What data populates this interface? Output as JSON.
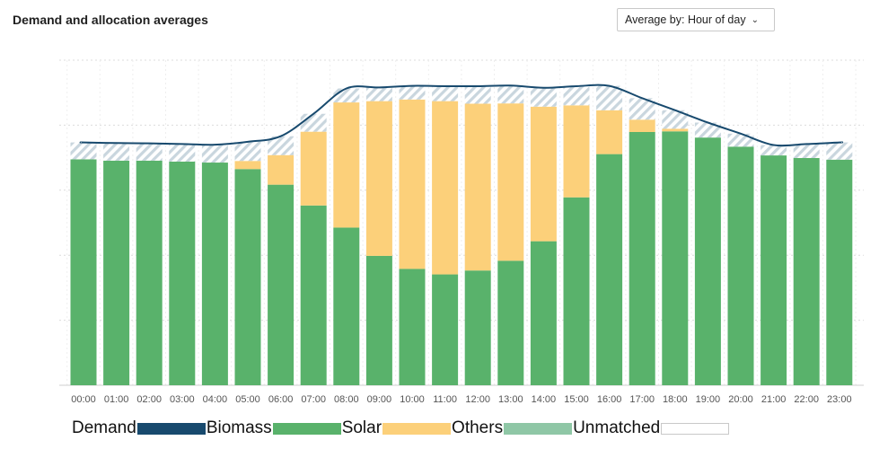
{
  "header": {
    "title": "Demand and allocation averages",
    "dropdown_label": "Average by: Hour of day"
  },
  "colors": {
    "demand": "#184a6e",
    "biomass": "#1b4d75",
    "solar": "#59b26b",
    "others": "#fcd07a",
    "unmatched": "#8fc7a6",
    "unmatched_hatch": "#c9d6de",
    "grid": "#dcdcdc"
  },
  "legend": [
    {
      "label": "Demand",
      "color": "#184a6e",
      "style": "solid"
    },
    {
      "label": "Biomass",
      "color": "#59b26b",
      "style": "solid"
    },
    {
      "label": "Solar",
      "color": "#fcd07a",
      "style": "solid"
    },
    {
      "label": "Others",
      "color": "#8fc7a6",
      "style": "solid"
    },
    {
      "label": "Unmatched",
      "color": "#ffffff",
      "style": "outline"
    }
  ],
  "chart_data": {
    "type": "bar",
    "stacked": true,
    "grid": true,
    "legend_position": "bottom",
    "ylim": [
      0,
      1
    ],
    "categories": [
      "00:00",
      "01:00",
      "02:00",
      "03:00",
      "04:00",
      "05:00",
      "06:00",
      "07:00",
      "08:00",
      "09:00",
      "10:00",
      "11:00",
      "12:00",
      "13:00",
      "14:00",
      "15:00",
      "16:00",
      "17:00",
      "18:00",
      "19:00",
      "20:00",
      "21:00",
      "22:00",
      "23:00"
    ],
    "series": [
      {
        "name": "Solar",
        "values": [
          0.695,
          0.691,
          0.691,
          0.688,
          0.685,
          0.665,
          0.617,
          0.553,
          0.485,
          0.398,
          0.358,
          0.341,
          0.353,
          0.383,
          0.443,
          0.578,
          0.711,
          0.779,
          0.781,
          0.762,
          0.734,
          0.707,
          0.699,
          0.694
        ]
      },
      {
        "name": "Others",
        "values": [
          0,
          0,
          0,
          0,
          0,
          0.025,
          0.091,
          0.227,
          0.385,
          0.476,
          0.521,
          0.533,
          0.513,
          0.484,
          0.414,
          0.283,
          0.135,
          0.038,
          0.008,
          0,
          0,
          0,
          0,
          0
        ]
      },
      {
        "name": "Unmatched",
        "values": [
          0.052,
          0.054,
          0.053,
          0.054,
          0.055,
          0.059,
          0.058,
          0.055,
          0.043,
          0.042,
          0.042,
          0.046,
          0.054,
          0.055,
          0.058,
          0.059,
          0.075,
          0.066,
          0.057,
          0.046,
          0.04,
          0.032,
          0.043,
          0.053
        ]
      }
    ],
    "demand": [
      0.747,
      0.745,
      0.744,
      0.742,
      0.74,
      0.749,
      0.766,
      0.835,
      0.913,
      0.916,
      0.921,
      0.92,
      0.92,
      0.922,
      0.915,
      0.92,
      0.921,
      0.883,
      0.846,
      0.808,
      0.774,
      0.739,
      0.742,
      0.747
    ]
  }
}
